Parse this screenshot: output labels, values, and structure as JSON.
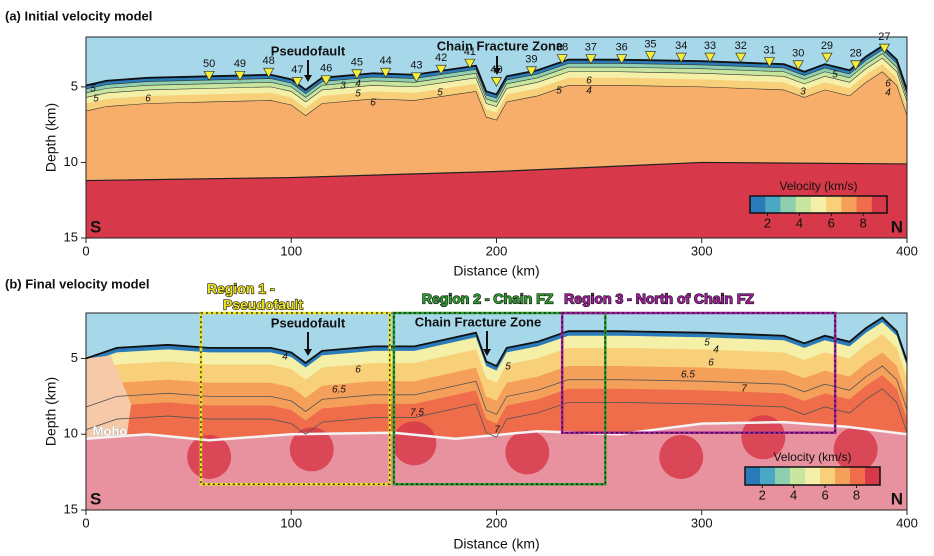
{
  "chart_data": [
    {
      "type": "velocity-model",
      "title": "(a) Initial velocity model",
      "xlabel": "Distance (km)",
      "ylabel": "Depth (km)",
      "xlim": [
        0,
        400
      ],
      "xticks": [
        0,
        100,
        200,
        300,
        400
      ],
      "ylim": [
        15,
        1.7
      ],
      "yticks": [
        5,
        10,
        15
      ],
      "ends": [
        "S",
        "N"
      ],
      "annotations": [
        "Pseudofault",
        "Chain Fracture Zone"
      ],
      "contour_labels": [
        5,
        5,
        6,
        3,
        4,
        5,
        6,
        5,
        6,
        4,
        5,
        3,
        6,
        4,
        5
      ],
      "station_color": "#f5ee3a",
      "stations": [
        {
          "number": 50,
          "distance": 60,
          "depth": 4.3
        },
        {
          "number": 49,
          "distance": 75,
          "depth": 4.3
        },
        {
          "number": 48,
          "distance": 89,
          "depth": 4.1
        },
        {
          "number": 47,
          "distance": 103,
          "depth": 4.7
        },
        {
          "number": 46,
          "distance": 117,
          "depth": 4.6
        },
        {
          "number": 45,
          "distance": 132,
          "depth": 4.2
        },
        {
          "number": 44,
          "distance": 146,
          "depth": 4.1
        },
        {
          "number": 43,
          "distance": 161,
          "depth": 4.4
        },
        {
          "number": 42,
          "distance": 173,
          "depth": 3.9
        },
        {
          "number": 41,
          "distance": 187,
          "depth": 3.5
        },
        {
          "number": 40,
          "distance": 200,
          "depth": 4.7
        },
        {
          "number": 39,
          "distance": 217,
          "depth": 4.0
        },
        {
          "number": 38,
          "distance": 232,
          "depth": 3.2
        },
        {
          "number": 37,
          "distance": 246,
          "depth": 3.2
        },
        {
          "number": 36,
          "distance": 261,
          "depth": 3.2
        },
        {
          "number": 35,
          "distance": 275,
          "depth": 3.0
        },
        {
          "number": 34,
          "distance": 290,
          "depth": 3.1
        },
        {
          "number": 33,
          "distance": 304,
          "depth": 3.1
        },
        {
          "number": 32,
          "distance": 319,
          "depth": 3.1
        },
        {
          "number": 31,
          "distance": 333,
          "depth": 3.4
        },
        {
          "number": 30,
          "distance": 347,
          "depth": 3.6
        },
        {
          "number": 29,
          "distance": 361,
          "depth": 3.1
        },
        {
          "number": 28,
          "distance": 375,
          "depth": 3.6
        },
        {
          "number": 27,
          "distance": 389,
          "depth": 2.5
        }
      ],
      "colorbar": {
        "label": "Velocity (km/s)",
        "ticks": [
          2,
          4,
          6,
          8
        ],
        "lim": [
          0.9,
          9.5
        ],
        "colors": [
          "#2b7bba",
          "#4aa8c2",
          "#8ecfb0",
          "#c9e6a0",
          "#f4f0a8",
          "#f8d07a",
          "#f5a05a",
          "#ef6d4a",
          "#d7394a"
        ]
      }
    },
    {
      "type": "velocity-model",
      "title": "(b) Final velocity model",
      "xlabel": "Distance (km)",
      "ylabel": "Depth (km)",
      "xlim": [
        0,
        400
      ],
      "xticks": [
        0,
        100,
        200,
        300,
        400
      ],
      "ylim": [
        15,
        2
      ],
      "yticks": [
        5,
        10,
        15
      ],
      "ends": [
        "S",
        "N"
      ],
      "annotations": [
        "Pseudofault",
        "Chain Fracture Zone",
        "Moho"
      ],
      "contour_labels": [
        4,
        5,
        6,
        6.5,
        7.5,
        7,
        5,
        4,
        6,
        6.5,
        7
      ],
      "regions": [
        {
          "label_lines": [
            "Region 1 -",
            "Pseudofault"
          ],
          "color": "#ece31a",
          "x0": 56,
          "x1": 148,
          "top": 2,
          "bottom": 13.3
        },
        {
          "label_lines": [
            "Region 2 - Chain FZ"
          ],
          "color": "#2e9e2e",
          "x0": 150,
          "x1": 253,
          "top": 2,
          "bottom": 13.3
        },
        {
          "label_lines": [
            "Region 3 - North of Chain FZ"
          ],
          "color": "#a21f9f",
          "x0": 232,
          "x1": 365,
          "top": 2,
          "bottom": 9.9
        }
      ],
      "colorbar": {
        "label": "Velocity (km/s)",
        "ticks": [
          2,
          4,
          6,
          8
        ],
        "lim": [
          0.9,
          9.5
        ],
        "colors": [
          "#2b7bba",
          "#4aa8c2",
          "#8ecfb0",
          "#c9e6a0",
          "#f4f0a8",
          "#f8d07a",
          "#f5a05a",
          "#ef6d4a",
          "#d7394a"
        ]
      }
    }
  ]
}
